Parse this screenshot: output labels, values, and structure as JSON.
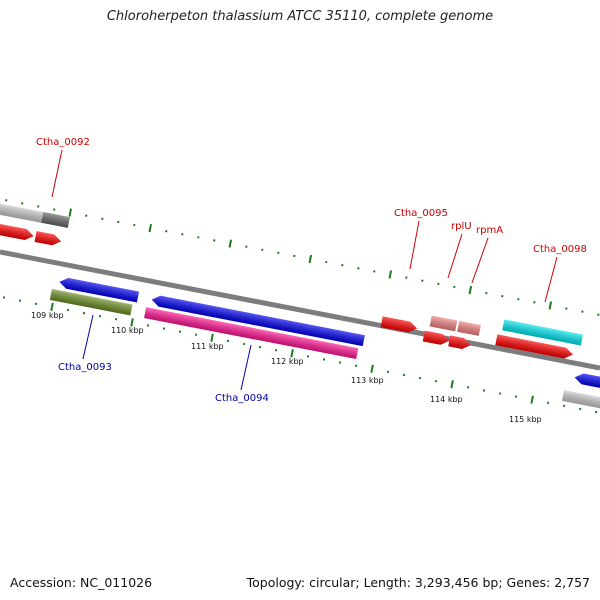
{
  "title": "Chloroherpeton thalassium ATCC 35110, complete genome",
  "footer": {
    "accession": "Accession: NC_011026",
    "summary": "Topology: circular; Length: 3,293,456 bp; Genes: 2,757"
  },
  "colors": {
    "backbone": "#7d7d7d",
    "tick": "#1f7a1f",
    "forward_label": "#cc0000",
    "reverse_label": "#0000aa",
    "red": "#ff0000",
    "salmon": "#f08080",
    "blue": "#0000ee",
    "olive": "#6b8e23",
    "magenta": "#ff1493",
    "cyan": "#00e5ee",
    "lightgray": "#c8c8c8",
    "darkgray": "#666666"
  },
  "kbp_labels": [
    "109 kbp",
    "110 kbp",
    "111 kbp",
    "112 kbp",
    "113 kbp",
    "114 kbp",
    "115 kbp"
  ],
  "gene_labels": {
    "forward": [
      "Ctha_0092",
      "Ctha_0095",
      "rplU",
      "rpmA",
      "Ctha_0098"
    ],
    "reverse": [
      "Ctha_0093",
      "Ctha_0094"
    ]
  }
}
